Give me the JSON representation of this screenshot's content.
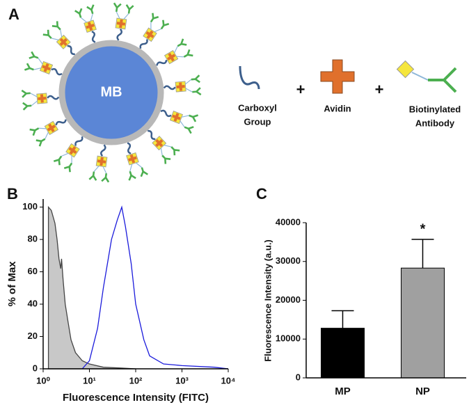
{
  "diagram": {
    "panel_label": "A",
    "center_label": "MB",
    "plus_signs": [
      "+",
      "+"
    ],
    "legend": {
      "carboxyl": [
        "Carboxyl",
        "Group"
      ],
      "avidin": [
        "Avidin"
      ],
      "antibody": [
        "Biotinylated",
        "Antibody"
      ]
    }
  },
  "chart_data": [
    {
      "panel_label": "B",
      "type": "line",
      "xlabel": "Fluorescence Intensity (FITC)",
      "ylabel": "% of Max",
      "xscale": "log",
      "xlim": [
        1,
        10000
      ],
      "xticks": [
        {
          "value": 1,
          "label": "10⁰"
        },
        {
          "value": 10,
          "label": "10¹"
        },
        {
          "value": 100,
          "label": "10²"
        },
        {
          "value": 1000,
          "label": "10³"
        },
        {
          "value": 10000,
          "label": "10⁴"
        }
      ],
      "ylim": [
        0,
        105
      ],
      "yticks": [
        0,
        20,
        40,
        60,
        80,
        100
      ],
      "series": [
        {
          "color": "#444444",
          "fill": "#c8c8c8",
          "x": [
            1.3,
            1.3,
            1.5,
            1.8,
            2,
            2.2,
            2.4,
            2.5,
            2.7,
            3,
            3.5,
            4,
            5,
            7,
            10,
            20,
            50,
            100
          ],
          "values": [
            0,
            100,
            98,
            90,
            80,
            68,
            62,
            68,
            55,
            40,
            28,
            18,
            10,
            5,
            3,
            1,
            0.5,
            0
          ]
        },
        {
          "color": "#1a1adb",
          "x": [
            7,
            10,
            15,
            20,
            30,
            40,
            50,
            60,
            80,
            100,
            150,
            200,
            400,
            1000,
            5000,
            10000
          ],
          "values": [
            0,
            5,
            25,
            50,
            80,
            92,
            100,
            88,
            65,
            40,
            18,
            8,
            3,
            2,
            1,
            0
          ]
        }
      ]
    },
    {
      "panel_label": "C",
      "type": "bar",
      "ylabel": "Fluorescence Intensity (a.u.)",
      "categories": [
        "MP",
        "NP"
      ],
      "values": [
        12800,
        28300
      ],
      "errors": [
        4500,
        7400
      ],
      "colors": [
        "#000000",
        "#a0a0a0"
      ],
      "ylim": [
        0,
        40000
      ],
      "yticks": [
        0,
        10000,
        20000,
        30000,
        40000
      ],
      "annotations": [
        "*"
      ]
    }
  ]
}
